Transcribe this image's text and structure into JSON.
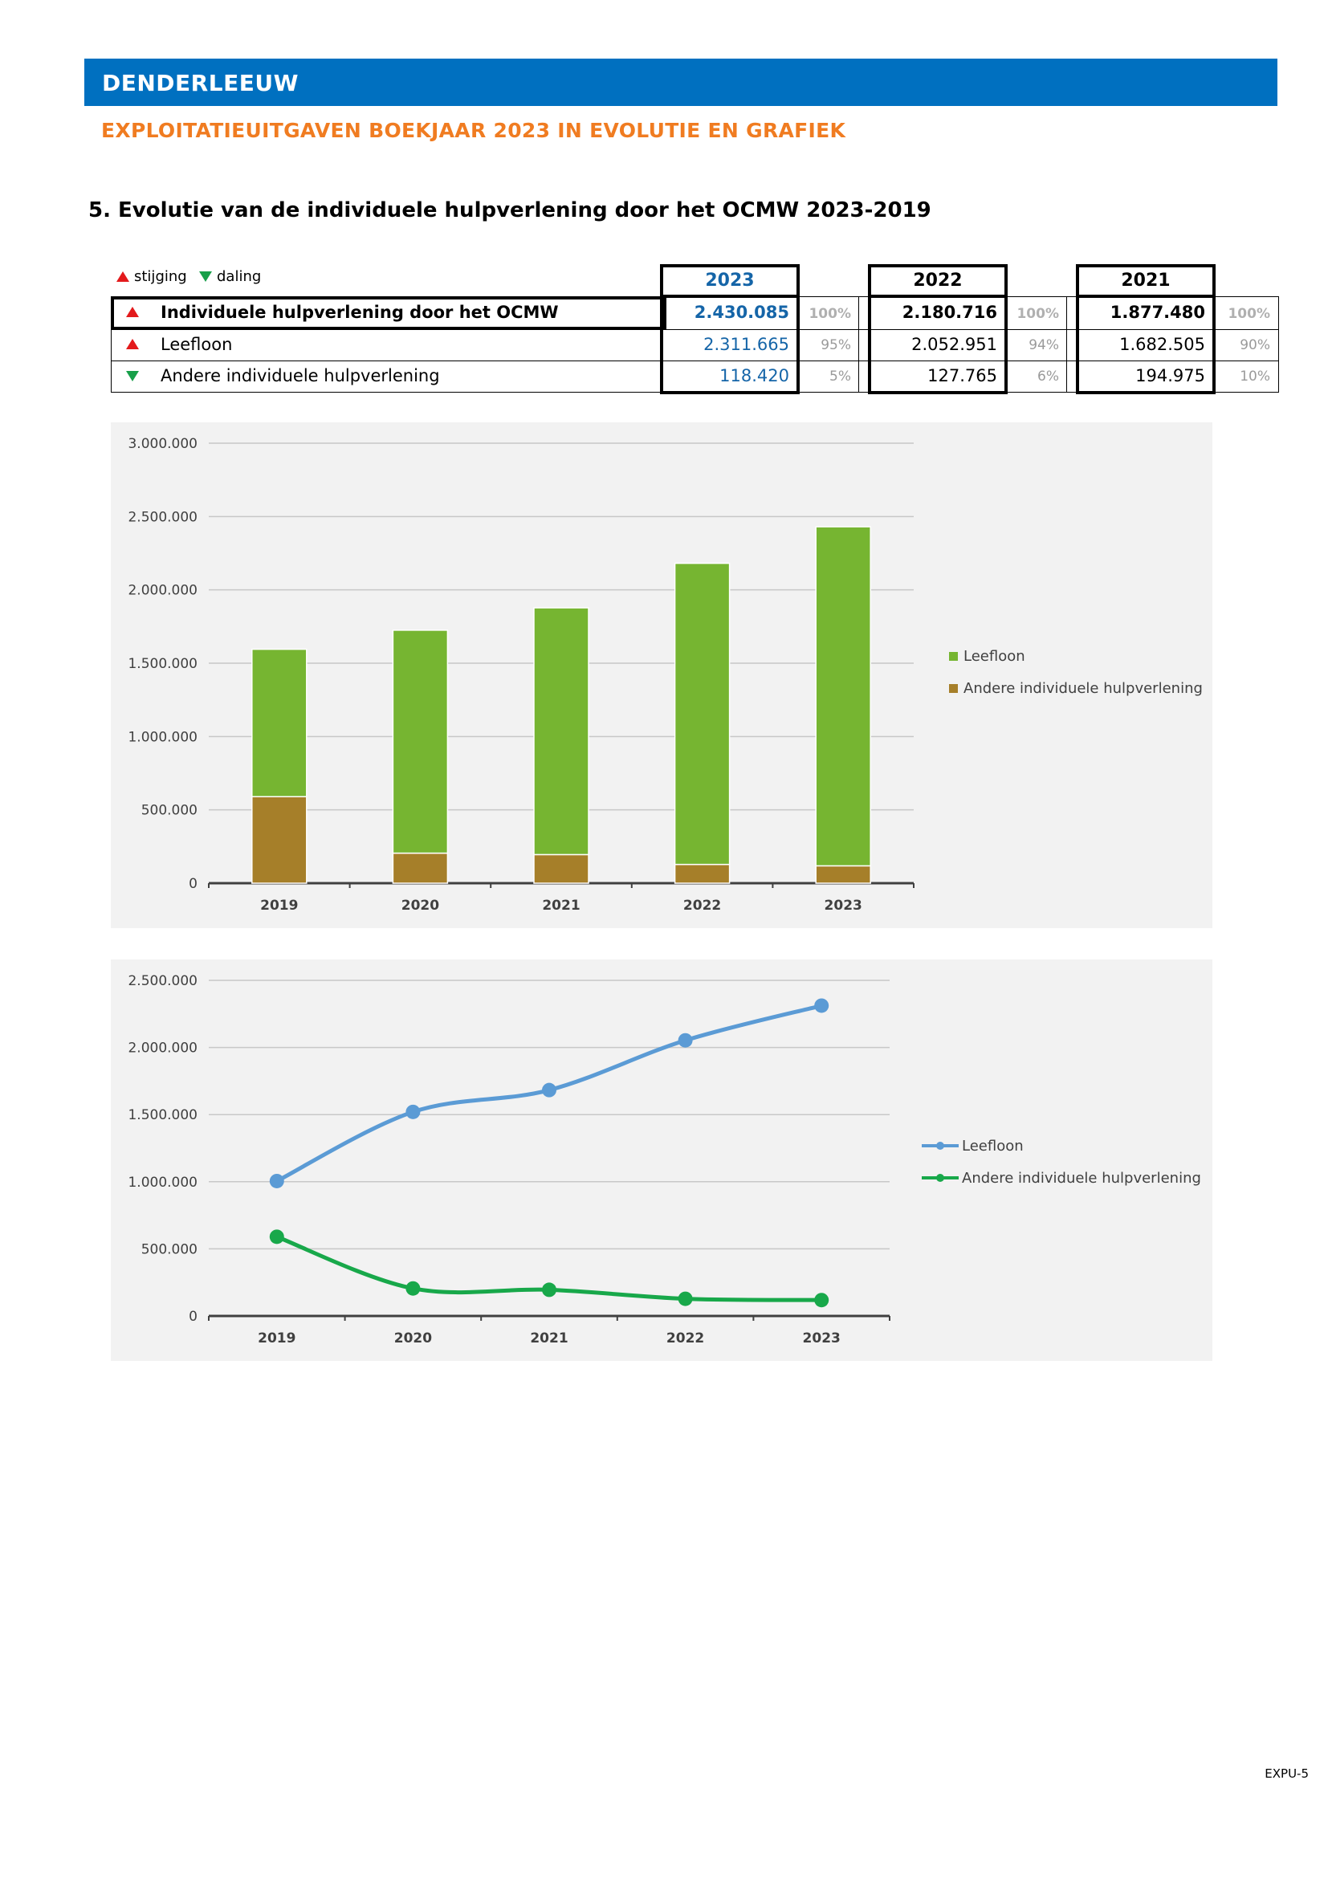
{
  "header": {
    "municipality": "DENDERLEEUW",
    "subtitle": "EXPLOITATIEUITGAVEN BOEKJAAR 2023 IN EVOLUTIE EN GRAFIEK"
  },
  "section": {
    "title": "5. Evolutie van de individuele hulpverlening door het OCMW 2023-2019"
  },
  "legend_mini": {
    "up": "stijging",
    "down": "daling"
  },
  "colors": {
    "banner": "#0070c0",
    "subtitle": "#f07c21",
    "value2023": "#1565a8",
    "bar_leefloon": "#76b531",
    "bar_andere": "#a67f29",
    "line_leefloon": "#5b9bd5",
    "line_andere": "#18a84a",
    "up": "#e31a1c",
    "down": "#18a04a"
  },
  "table": {
    "years": [
      "2023",
      "2022",
      "2021"
    ],
    "rows": [
      {
        "trend": "up",
        "label": "Individuele hulpverlening door het OCMW",
        "bold": true,
        "values": [
          "2.430.085",
          "2.180.716",
          "1.877.480"
        ],
        "pcts": [
          "100%",
          "100%",
          "100%"
        ]
      },
      {
        "trend": "up",
        "label": "Leefloon",
        "bold": false,
        "values": [
          "2.311.665",
          "2.052.951",
          "1.682.505"
        ],
        "pcts": [
          "95%",
          "94%",
          "90%"
        ]
      },
      {
        "trend": "down",
        "label": "Andere individuele hulpverlening",
        "bold": false,
        "values": [
          "118.420",
          "127.765",
          "194.975"
        ],
        "pcts": [
          "5%",
          "6%",
          "10%"
        ]
      }
    ]
  },
  "chart_data": [
    {
      "type": "bar",
      "stacked": true,
      "categories": [
        "2019",
        "2020",
        "2021",
        "2022",
        "2023"
      ],
      "series": [
        {
          "name": "Andere individuele hulpverlening",
          "values": [
            590000,
            205000,
            195000,
            128000,
            118420
          ]
        },
        {
          "name": "Leefloon",
          "values": [
            1005000,
            1520000,
            1682505,
            2052951,
            2311665
          ]
        }
      ],
      "ylim": [
        0,
        3000000
      ],
      "yticks": [
        "0",
        "500.000",
        "1.000.000",
        "1.500.000",
        "2.000.000",
        "2.500.000",
        "3.000.000"
      ],
      "legend": "right",
      "grid": true
    },
    {
      "type": "line",
      "categories": [
        "2019",
        "2020",
        "2021",
        "2022",
        "2023"
      ],
      "series": [
        {
          "name": "Leefloon",
          "values": [
            1005000,
            1520000,
            1682505,
            2052951,
            2311665
          ]
        },
        {
          "name": "Andere individuele hulpverlening",
          "values": [
            590000,
            205000,
            195000,
            128000,
            118420
          ]
        }
      ],
      "ylim": [
        0,
        2500000
      ],
      "yticks": [
        "0",
        "500.000",
        "1.000.000",
        "1.500.000",
        "2.000.000",
        "2.500.000"
      ],
      "legend": "right",
      "grid": true
    }
  ],
  "footer": {
    "page": "EXPU-5"
  }
}
